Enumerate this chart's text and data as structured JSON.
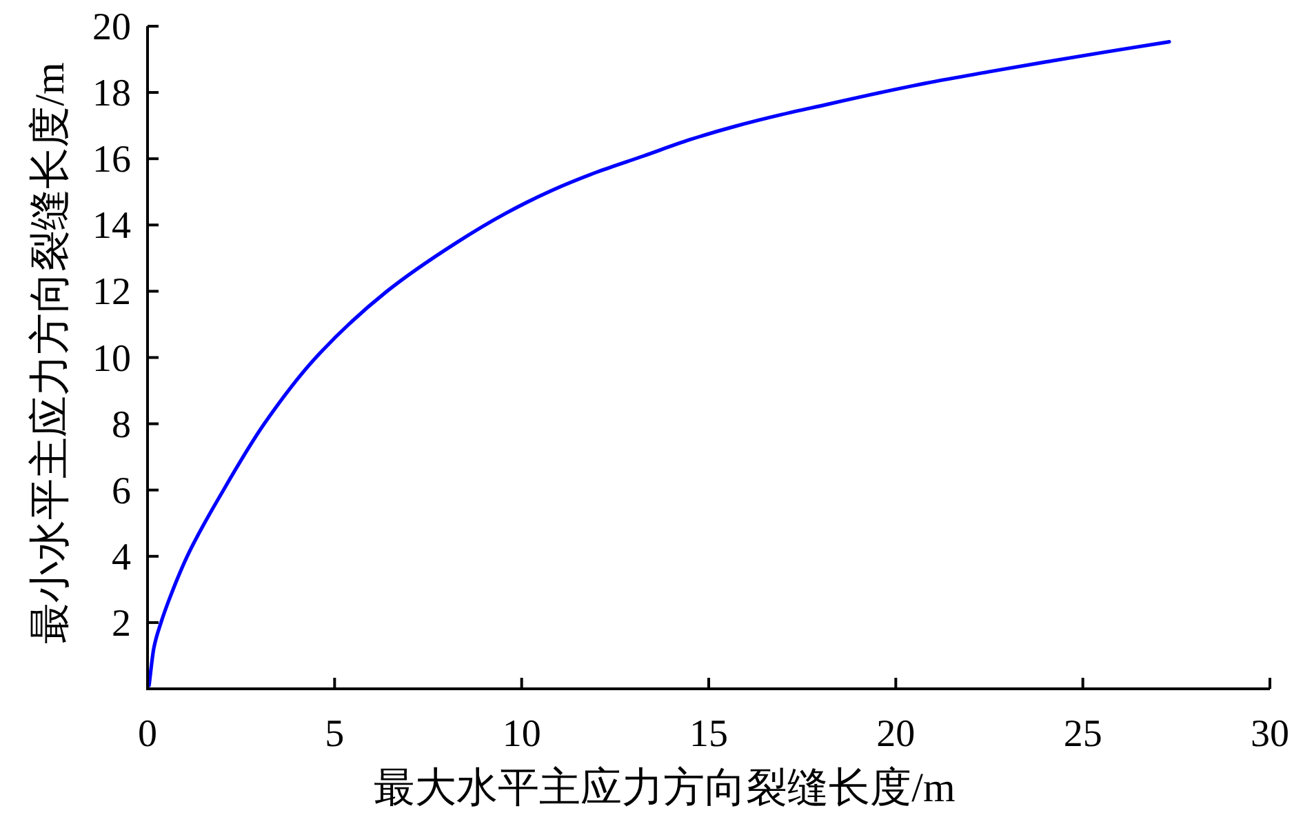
{
  "chart_data": {
    "type": "line",
    "xlabel": "最大水平主应力方向裂缝长度/m",
    "ylabel": "最小水平主应力方向裂缝长度/m",
    "x": [
      0.04,
      0.17,
      0.36,
      0.6,
      1.06,
      2.03,
      3.12,
      4.5,
      6.4,
      8.22,
      9.57,
      10.8,
      12.02,
      13.25,
      14.48,
      15.71,
      16.94,
      18.17,
      19.27,
      20.94,
      22.47,
      24.0,
      25.54,
      27.31
    ],
    "series": [
      {
        "color": "#0000ff",
        "values": [
          0.1,
          1.24,
          2,
          2.76,
          4,
          6,
          8,
          10,
          12,
          13.44,
          14.35,
          15.04,
          15.6,
          16.08,
          16.57,
          16.98,
          17.33,
          17.64,
          17.92,
          18.31,
          18.62,
          18.92,
          19.21,
          19.53
        ]
      }
    ],
    "xlim": [
      0,
      30
    ],
    "ylim": [
      0,
      20
    ],
    "xticks": [
      0,
      5,
      10,
      15,
      20,
      25,
      30
    ],
    "yticks": [
      2,
      4,
      6,
      8,
      10,
      12,
      14,
      16,
      18,
      20
    ],
    "marker": "none",
    "line_style": "solid"
  }
}
